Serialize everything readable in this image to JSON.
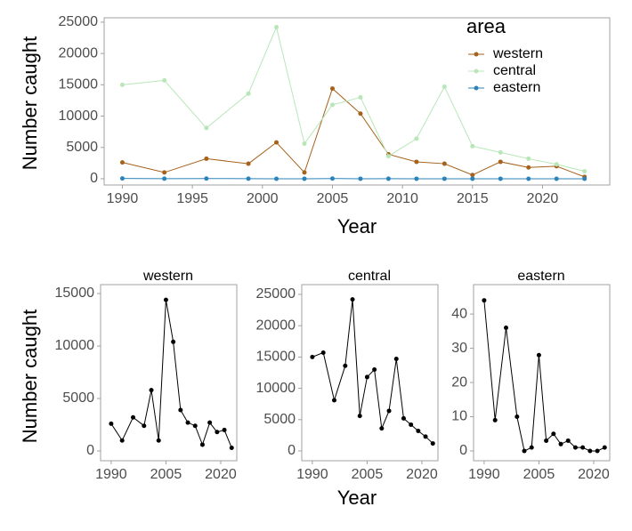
{
  "chart_data": [
    {
      "type": "line",
      "xlabel": "Year",
      "ylabel": "Number caught",
      "legend_title": "area",
      "legend": "top-right",
      "x": [
        1990,
        1993,
        1996,
        1999,
        2001,
        2003,
        2005,
        2007,
        2009,
        2011,
        2013,
        2015,
        2017,
        2019,
        2021,
        2023
      ],
      "xlim": [
        1988.7,
        2024.8
      ],
      "xticks": [
        1990,
        1995,
        2000,
        2005,
        2010,
        2015,
        2020
      ],
      "ylim": [
        -1000,
        25700
      ],
      "yticks": [
        0,
        5000,
        10000,
        15000,
        20000,
        25000
      ],
      "series": [
        {
          "name": "western",
          "color": "#a6611a",
          "values": [
            2600,
            1000,
            3200,
            2400,
            5800,
            1000,
            14400,
            10400,
            3900,
            2700,
            2400,
            600,
            2700,
            1800,
            2000,
            300
          ]
        },
        {
          "name": "central",
          "color": "#b8e6b8",
          "values": [
            15000,
            15700,
            8100,
            13600,
            24200,
            5600,
            11800,
            13000,
            3600,
            6400,
            14700,
            5200,
            4200,
            3200,
            2300,
            1200
          ]
        },
        {
          "name": "eastern",
          "color": "#2b83ba",
          "values": [
            44,
            9,
            36,
            10,
            0,
            1,
            28,
            3,
            5,
            2,
            3,
            1,
            1,
            0,
            0,
            1
          ]
        }
      ]
    },
    {
      "type": "line-facets",
      "xlabel": "Year",
      "ylabel": "Number caught",
      "color": "#000000",
      "x": [
        1990,
        1993,
        1996,
        1999,
        2001,
        2003,
        2005,
        2007,
        2009,
        2011,
        2013,
        2015,
        2017,
        2019,
        2021,
        2023
      ],
      "xlim": [
        1987.1,
        2024.4
      ],
      "xticks": [
        1990,
        2005,
        2020
      ],
      "panels": [
        {
          "title": "western",
          "ylim": [
            -930,
            15850
          ],
          "yticks": [
            0,
            5000,
            10000,
            15000
          ],
          "values": [
            2600,
            1000,
            3200,
            2400,
            5800,
            1000,
            14400,
            10400,
            3900,
            2700,
            2400,
            600,
            2700,
            1800,
            2000,
            300
          ]
        },
        {
          "title": "central",
          "ylim": [
            -1560,
            26560
          ],
          "yticks": [
            0,
            5000,
            10000,
            15000,
            20000,
            25000
          ],
          "values": [
            15000,
            15700,
            8100,
            13600,
            24200,
            5600,
            11800,
            13000,
            3600,
            6400,
            14700,
            5200,
            4200,
            3200,
            2300,
            1200
          ]
        },
        {
          "title": "eastern",
          "ylim": [
            -2.86,
            48.6
          ],
          "yticks": [
            0,
            10,
            20,
            30,
            40
          ],
          "values": [
            44,
            9,
            36,
            10,
            0,
            1,
            28,
            3,
            5,
            2,
            3,
            1,
            1,
            0,
            0,
            1
          ]
        }
      ]
    }
  ]
}
